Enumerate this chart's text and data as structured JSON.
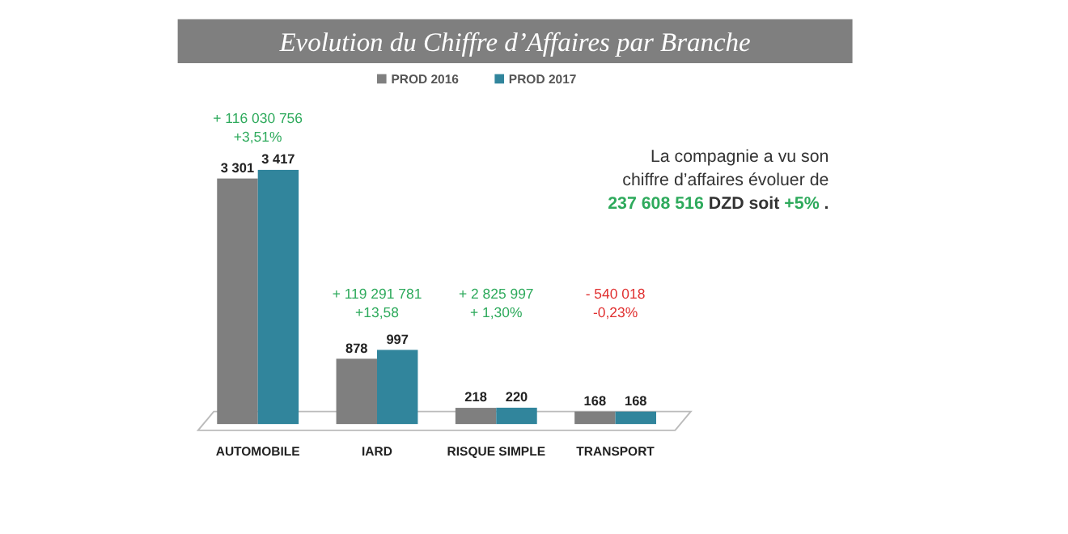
{
  "chart_data": {
    "type": "bar",
    "title": "Evolution du Chiffre d’Affaires par Branche",
    "categories": [
      "AUTOMOBILE",
      "IARD",
      "RISQUE SIMPLE",
      "TRANSPORT"
    ],
    "series": [
      {
        "name": "PROD 2016",
        "color": "#7f7f7f",
        "values": [
          3301,
          878,
          218,
          168
        ],
        "value_labels": [
          "3 301",
          "878",
          "218",
          "168"
        ]
      },
      {
        "name": "PROD 2017",
        "color": "#31859c",
        "values": [
          3417,
          997,
          220,
          168
        ],
        "value_labels": [
          "3 417",
          "997",
          "220",
          "168"
        ]
      }
    ],
    "legend": "top",
    "grid": false,
    "annotations": [
      "+ 116 030 756\n+3,51%",
      "+ 119 291 781\n+13,58",
      "+ 2 825 997\n+ 1,30%",
      "- 540 018\n-0,23%",
      "La compagnie a vu son\nchiffre d’affaires évoluer de\n237 608 516 DZD soit +5% ."
    ]
  }
}
